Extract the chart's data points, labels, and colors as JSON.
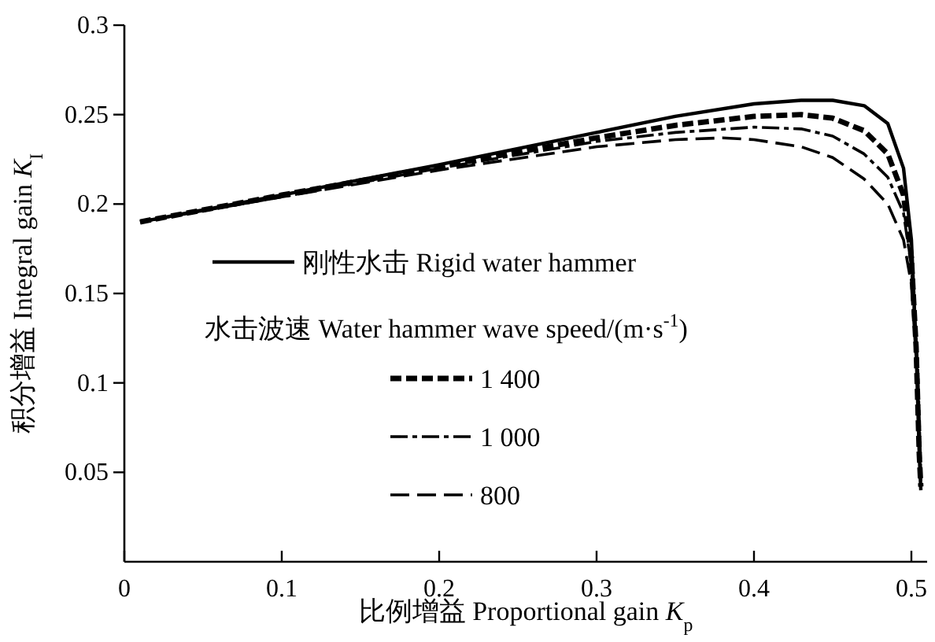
{
  "chart_data": {
    "type": "line",
    "xlabel": "比例增益 Proportional gain *K*$_{p}$",
    "ylabel": "积分增益 Integral gain *K*$_{I}$",
    "legend_title": "水击波速 Water hammer wave speed/(m·s$^{-1}$)",
    "legend": "left",
    "grid": false,
    "marker": "none",
    "xlim": [
      0,
      0.51
    ],
    "xticks": [
      0,
      0.1,
      0.2,
      0.3,
      0.4,
      0.5
    ],
    "ylim": [
      0,
      0.3
    ],
    "yticks": [
      0.05,
      0.1,
      0.15,
      0.2,
      0.25,
      0.3
    ],
    "series": [
      {
        "name": "刚性水击 Rigid water hammer",
        "color": "#000000",
        "line_style": "solid",
        "x": [
          0.01,
          0.1,
          0.2,
          0.3,
          0.35,
          0.4,
          0.43,
          0.45,
          0.47,
          0.485,
          0.495,
          0.5,
          0.503,
          0.505,
          0.506
        ],
        "values": [
          0.19,
          0.205,
          0.222,
          0.24,
          0.249,
          0.256,
          0.258,
          0.258,
          0.255,
          0.245,
          0.22,
          0.18,
          0.12,
          0.06,
          0.04
        ]
      },
      {
        "name": "1 400",
        "color": "#000000",
        "line_style": "dashed",
        "x": [
          0.01,
          0.1,
          0.2,
          0.3,
          0.35,
          0.4,
          0.43,
          0.45,
          0.47,
          0.485,
          0.495,
          0.5,
          0.503,
          0.505,
          0.506
        ],
        "values": [
          0.19,
          0.205,
          0.221,
          0.237,
          0.244,
          0.249,
          0.25,
          0.248,
          0.241,
          0.228,
          0.205,
          0.17,
          0.12,
          0.06,
          0.042
        ]
      },
      {
        "name": "1 000",
        "color": "#000000",
        "line_style": "dashdot",
        "x": [
          0.01,
          0.1,
          0.2,
          0.3,
          0.35,
          0.4,
          0.43,
          0.45,
          0.47,
          0.485,
          0.495,
          0.5,
          0.504,
          0.506
        ],
        "values": [
          0.19,
          0.204,
          0.22,
          0.235,
          0.24,
          0.243,
          0.242,
          0.238,
          0.228,
          0.215,
          0.195,
          0.165,
          0.11,
          0.05
        ]
      },
      {
        "name": "800",
        "color": "#000000",
        "line_style": "longdashed",
        "x": [
          0.01,
          0.1,
          0.2,
          0.3,
          0.35,
          0.38,
          0.4,
          0.43,
          0.45,
          0.47,
          0.485,
          0.495,
          0.5,
          0.504,
          0.506
        ],
        "values": [
          0.19,
          0.204,
          0.219,
          0.232,
          0.236,
          0.237,
          0.236,
          0.232,
          0.226,
          0.214,
          0.2,
          0.18,
          0.155,
          0.1,
          0.045
        ]
      }
    ]
  }
}
